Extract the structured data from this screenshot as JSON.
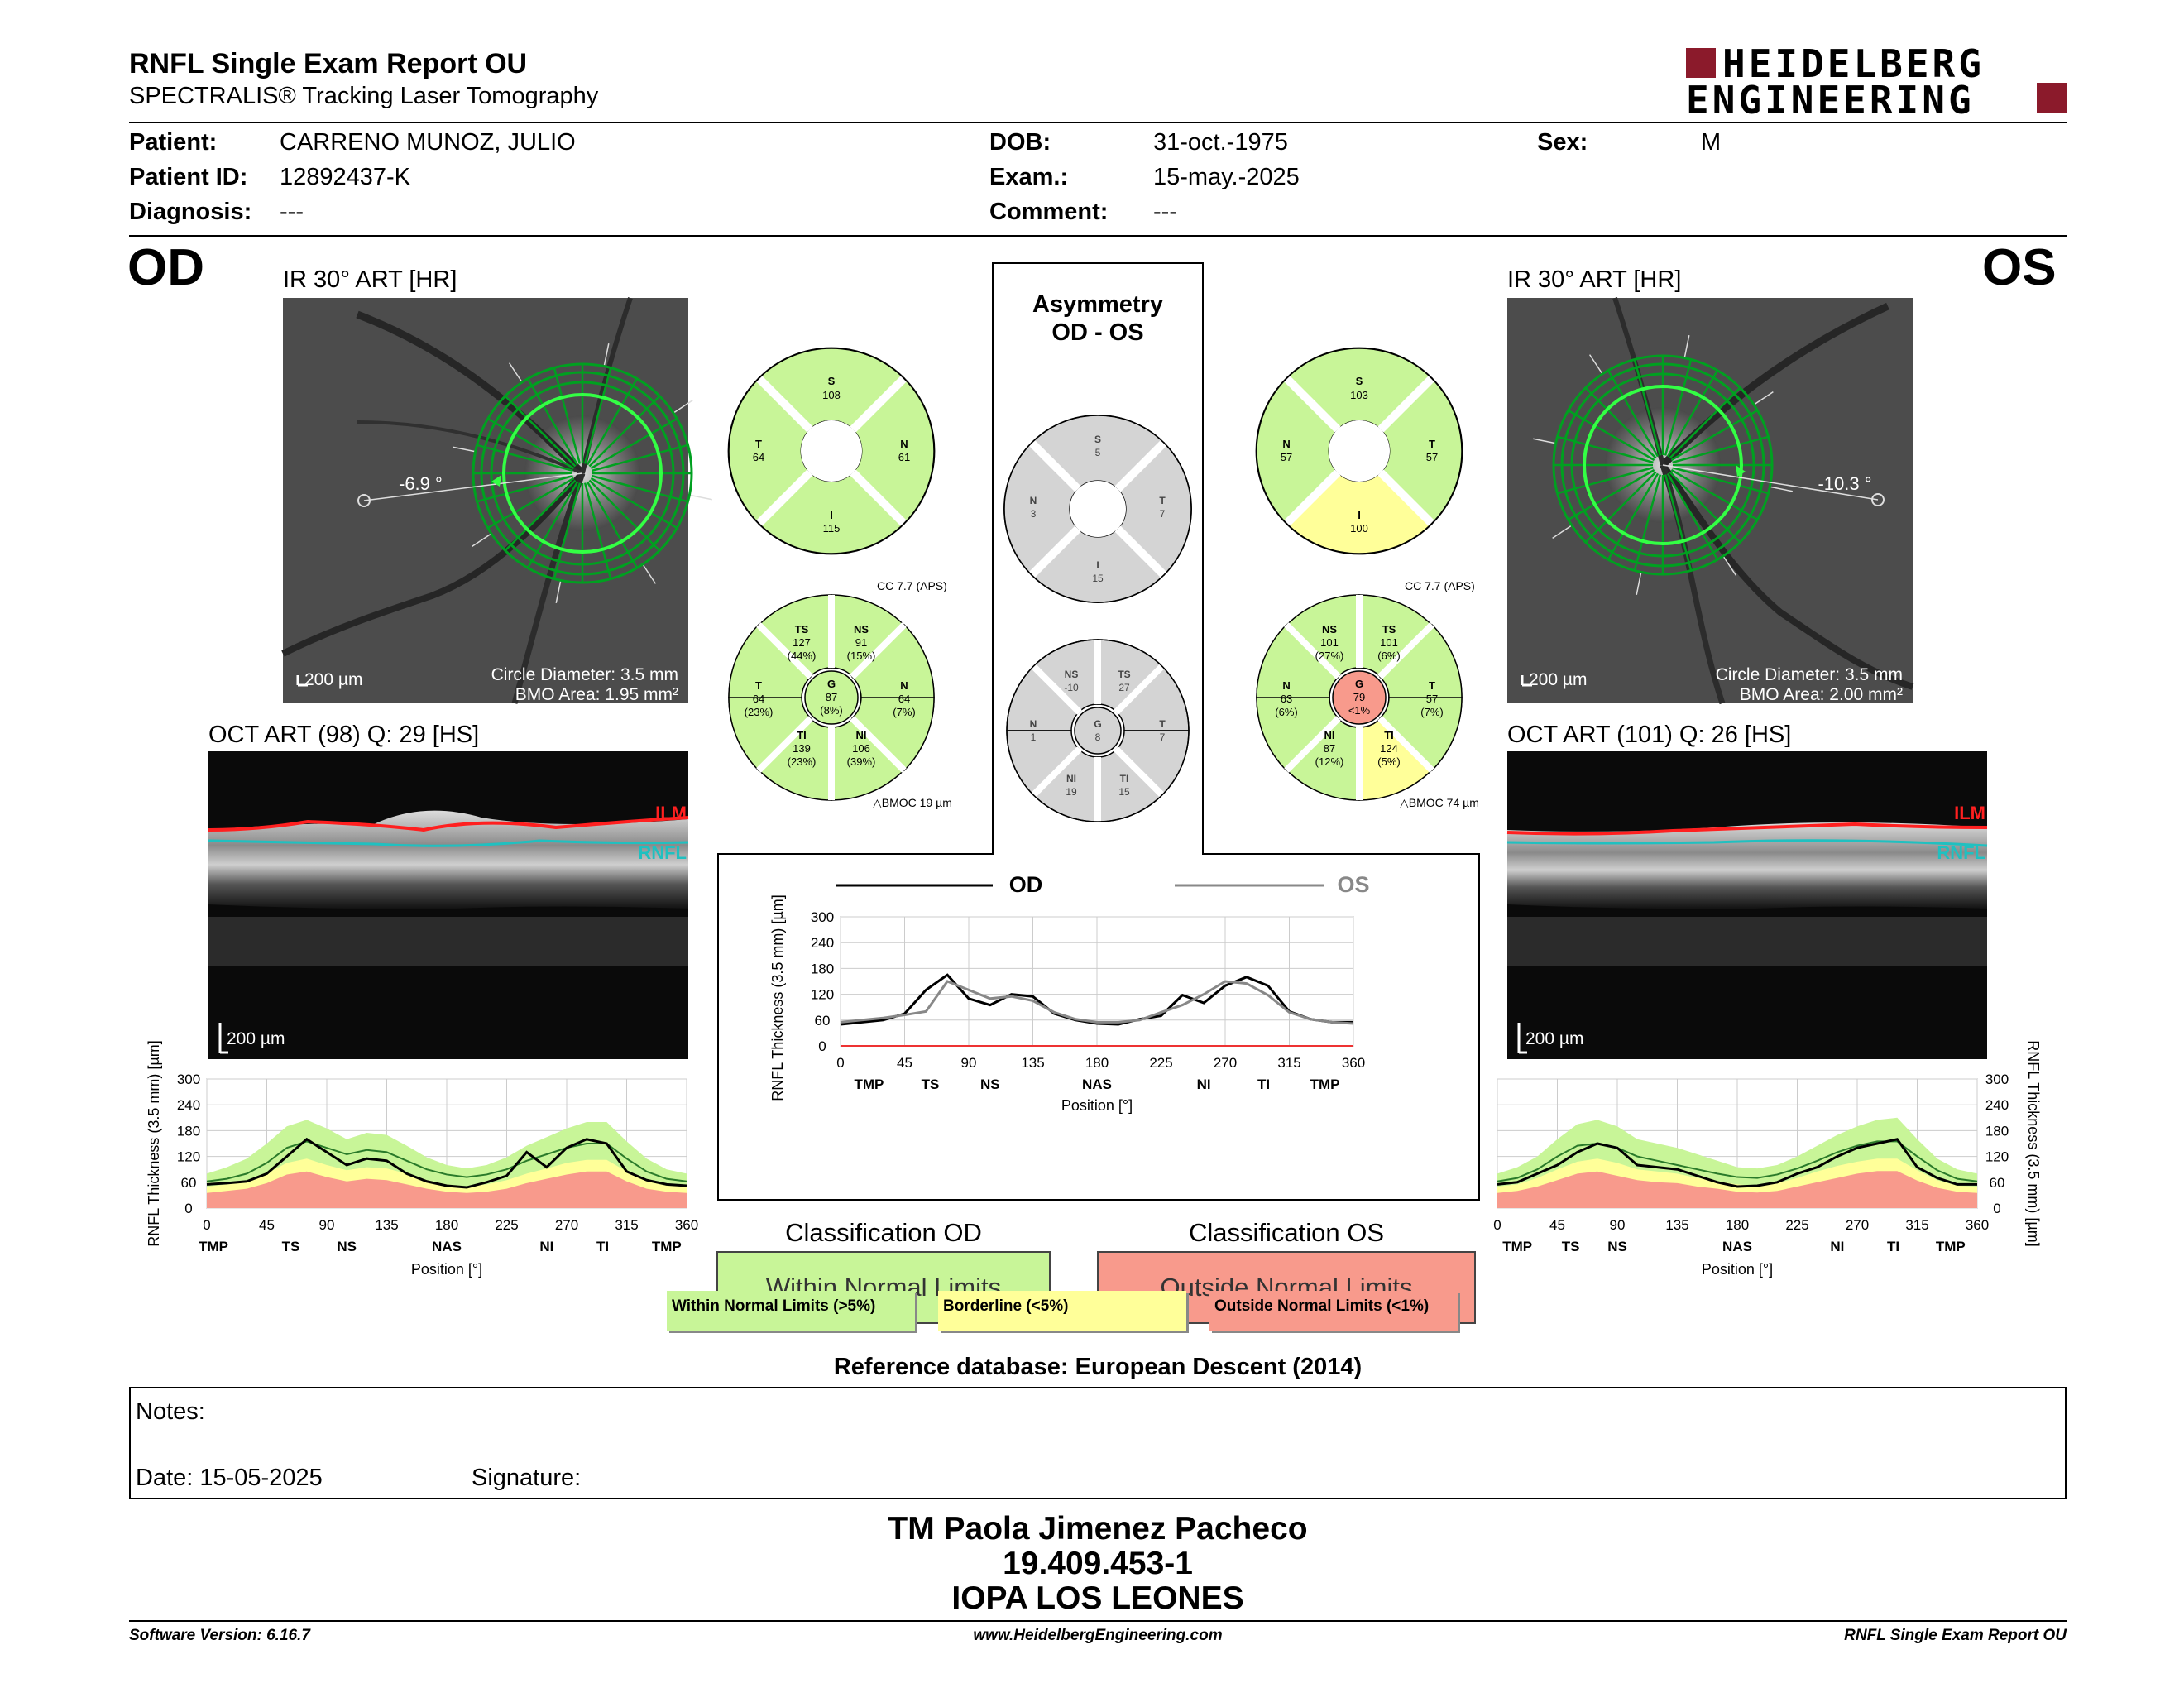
{
  "header": {
    "title": "RNFL Single Exam Report OU",
    "subtitle": "SPECTRALIS® Tracking Laser Tomography",
    "logo_line1": "HEIDELBERG",
    "logo_line2": "ENGINEERING"
  },
  "patient": {
    "patient_label": "Patient:",
    "patient_value": "CARRENO MUNOZ, JULIO",
    "id_label": "Patient ID:",
    "id_value": "12892437-K",
    "diagnosis_label": "Diagnosis:",
    "diagnosis_value": "---",
    "dob_label": "DOB:",
    "dob_value": "31-oct.-1975",
    "exam_label": "Exam.:",
    "exam_value": "15-may.-2025",
    "comment_label": "Comment:",
    "comment_value": "---",
    "sex_label": "Sex:",
    "sex_value": "M"
  },
  "od": {
    "eye": "OD",
    "ir_title": "IR 30° ART [HR]",
    "angle": "-6.9 °",
    "scale": "200 µm",
    "circle": "Circle Diameter: 3.5 mm",
    "bmo": "BMO Area: 1.95 mm²",
    "oct_title": "OCT ART (98) Q: 29 [HS]",
    "oct_scale": "200 µm",
    "ilm": "ILM",
    "rnfl": "RNFL",
    "classification_title": "Classification OD",
    "classification": "Within Normal Limits",
    "quad": {
      "s": "S",
      "s_v": "108",
      "t": "T",
      "t_v": "64",
      "n": "N",
      "n_v": "61",
      "i": "I",
      "i_v": "115"
    },
    "sect": {
      "cc": "CC 7.7 (APS)",
      "ts": "TS",
      "ts_v": "127",
      "ts_p": "(44%)",
      "ns": "NS",
      "ns_v": "91",
      "ns_p": "(15%)",
      "t": "T",
      "t_v": "64",
      "t_p": "(23%)",
      "g": "G",
      "g_v": "87",
      "g_p": "(8%)",
      "n": "N",
      "n_v": "64",
      "n_p": "(7%)",
      "ti": "TI",
      "ti_v": "139",
      "ti_p": "(23%)",
      "ni": "NI",
      "ni_v": "106",
      "ni_p": "(39%)",
      "bmoc": "BMOC 19 µm"
    }
  },
  "os": {
    "eye": "OS",
    "ir_title": "IR 30° ART [HR]",
    "angle": "-10.3 °",
    "scale": "200 µm",
    "circle": "Circle Diameter: 3.5 mm",
    "bmo": "BMO Area: 2.00 mm²",
    "oct_title": "OCT ART (101) Q: 26 [HS]",
    "oct_scale": "200 µm",
    "ilm": "ILM",
    "rnfl": "RNFL",
    "classification_title": "Classification OS",
    "classification": "Outside Normal Limits",
    "quad": {
      "s": "S",
      "s_v": "103",
      "t": "T",
      "t_v": "57",
      "n": "N",
      "n_v": "57",
      "i": "I",
      "i_v": "100"
    },
    "sect": {
      "cc": "CC 7.7 (APS)",
      "ns": "NS",
      "ns_v": "101",
      "ns_p": "(27%)",
      "ts": "TS",
      "ts_v": "101",
      "ts_p": "(6%)",
      "n": "N",
      "n_v": "63",
      "n_p": "(6%)",
      "g": "G",
      "g_v": "79",
      "g_p": "<1%",
      "t": "T",
      "t_v": "57",
      "t_p": "(7%)",
      "ni": "NI",
      "ni_v": "87",
      "ni_p": "(12%)",
      "ti": "TI",
      "ti_v": "124",
      "ti_p": "(5%)",
      "bmoc": "BMOC 74 µm"
    }
  },
  "asym": {
    "title1": "Asymmetry",
    "title2": "OD - OS",
    "quad": {
      "s": "S",
      "s_v": "5",
      "t": "T",
      "t_v": "7",
      "n": "N",
      "n_v": "3",
      "i": "I",
      "i_v": "15"
    },
    "sect": {
      "ns": "NS",
      "ns_v": "-10",
      "ts": "TS",
      "ts_v": "27",
      "n": "N",
      "n_v": "1",
      "g": "G",
      "g_v": "8",
      "t": "T",
      "t_v": "7",
      "ni": "NI",
      "ni_v": "19",
      "ti": "TI",
      "ti_v": "15"
    }
  },
  "chart_data": [
    {
      "type": "line",
      "id": "asymmetry-profile",
      "title": "",
      "series": [
        {
          "name": "OD",
          "color": "#000000",
          "x": [
            0,
            15,
            30,
            45,
            60,
            75,
            90,
            105,
            120,
            135,
            150,
            165,
            180,
            195,
            210,
            225,
            240,
            255,
            270,
            285,
            300,
            315,
            330,
            345,
            360
          ],
          "values": [
            50,
            55,
            60,
            75,
            130,
            165,
            110,
            95,
            120,
            115,
            75,
            60,
            52,
            50,
            62,
            70,
            118,
            100,
            140,
            160,
            140,
            80,
            62,
            55,
            55
          ]
        },
        {
          "name": "OS",
          "color": "#888888",
          "x": [
            0,
            15,
            30,
            45,
            60,
            75,
            90,
            105,
            120,
            135,
            150,
            165,
            180,
            195,
            210,
            225,
            240,
            255,
            270,
            285,
            300,
            315,
            330,
            345,
            360
          ],
          "values": [
            55,
            60,
            65,
            72,
            80,
            150,
            130,
            110,
            115,
            105,
            78,
            62,
            55,
            55,
            60,
            78,
            95,
            120,
            150,
            145,
            118,
            78,
            62,
            55,
            52
          ]
        }
      ],
      "xlabel": "Position [°]",
      "ylabel": "RNFL Thickness (3.5 mm) [µm]",
      "xlim": [
        0,
        360
      ],
      "ylim": [
        0,
        300
      ],
      "xticks": [
        0,
        45,
        90,
        135,
        180,
        225,
        270,
        315,
        360
      ],
      "yticks": [
        0,
        60,
        120,
        180,
        240,
        300
      ],
      "sector_labels": [
        {
          "x": 20,
          "text": "TMP"
        },
        {
          "x": 63,
          "text": "TS"
        },
        {
          "x": 105,
          "text": "NS"
        },
        {
          "x": 180,
          "text": "NAS"
        },
        {
          "x": 255,
          "text": "NI"
        },
        {
          "x": 297,
          "text": "TI"
        },
        {
          "x": 340,
          "text": "TMP"
        }
      ]
    },
    {
      "type": "area",
      "id": "od-profile",
      "xlabel": "Position [°]",
      "ylabel": "RNFL Thickness (3.5 mm) [µm]",
      "xlim": [
        0,
        360
      ],
      "ylim": [
        0,
        300
      ],
      "xticks": [
        0,
        45,
        90,
        135,
        180,
        225,
        270,
        315,
        360
      ],
      "yticks": [
        0,
        60,
        120,
        180,
        240,
        300
      ],
      "sector_labels": [
        {
          "x": 5,
          "text": "TMP"
        },
        {
          "x": 63,
          "text": "TS"
        },
        {
          "x": 105,
          "text": "NS"
        },
        {
          "x": 180,
          "text": "NAS"
        },
        {
          "x": 255,
          "text": "NI"
        },
        {
          "x": 297,
          "text": "TI"
        },
        {
          "x": 345,
          "text": "TMP"
        }
      ],
      "x": [
        0,
        15,
        30,
        45,
        60,
        75,
        90,
        105,
        120,
        135,
        150,
        165,
        180,
        195,
        210,
        225,
        240,
        255,
        270,
        285,
        300,
        315,
        330,
        345,
        360
      ],
      "measured": [
        55,
        58,
        62,
        80,
        120,
        160,
        130,
        100,
        115,
        110,
        80,
        62,
        52,
        48,
        60,
        75,
        130,
        95,
        140,
        160,
        150,
        85,
        65,
        55,
        52
      ],
      "mean": [
        62,
        68,
        80,
        105,
        140,
        155,
        140,
        125,
        135,
        130,
        110,
        90,
        78,
        72,
        78,
        90,
        110,
        125,
        140,
        150,
        150,
        115,
        85,
        68,
        62
      ],
      "band_green_top": [
        80,
        95,
        115,
        150,
        190,
        205,
        185,
        160,
        175,
        170,
        145,
        118,
        100,
        92,
        100,
        118,
        145,
        165,
        185,
        200,
        200,
        155,
        115,
        90,
        80
      ],
      "band_yellow_top": [
        50,
        55,
        62,
        80,
        105,
        115,
        100,
        88,
        95,
        92,
        80,
        65,
        55,
        50,
        55,
        65,
        80,
        92,
        105,
        112,
        112,
        85,
        62,
        52,
        50
      ],
      "band_red_top": [
        35,
        40,
        45,
        58,
        78,
        85,
        72,
        62,
        68,
        65,
        55,
        45,
        38,
        35,
        38,
        45,
        58,
        68,
        78,
        85,
        85,
        62,
        45,
        38,
        35
      ]
    },
    {
      "type": "area",
      "id": "os-profile",
      "xlabel": "Position [°]",
      "ylabel": "RNFL Thickness (3.5 mm) [µm]",
      "xlim": [
        0,
        360
      ],
      "ylim": [
        0,
        300
      ],
      "xticks": [
        0,
        45,
        90,
        135,
        180,
        225,
        270,
        315,
        360
      ],
      "yticks": [
        0,
        60,
        120,
        180,
        240,
        300
      ],
      "sector_labels": [
        {
          "x": 15,
          "text": "TMP"
        },
        {
          "x": 55,
          "text": "TS"
        },
        {
          "x": 90,
          "text": "NS"
        },
        {
          "x": 180,
          "text": "NAS"
        },
        {
          "x": 255,
          "text": "NI"
        },
        {
          "x": 297,
          "text": "TI"
        },
        {
          "x": 340,
          "text": "TMP"
        }
      ],
      "x": [
        0,
        15,
        30,
        45,
        60,
        75,
        90,
        105,
        120,
        135,
        150,
        165,
        180,
        195,
        210,
        225,
        240,
        255,
        270,
        285,
        300,
        315,
        330,
        345,
        360
      ],
      "measured": [
        55,
        60,
        80,
        100,
        130,
        150,
        140,
        100,
        95,
        90,
        75,
        60,
        50,
        52,
        60,
        80,
        95,
        120,
        140,
        150,
        160,
        95,
        70,
        55,
        55
      ],
      "mean": [
        62,
        70,
        90,
        120,
        145,
        150,
        140,
        120,
        110,
        100,
        90,
        80,
        72,
        70,
        78,
        92,
        110,
        130,
        145,
        155,
        155,
        120,
        88,
        68,
        62
      ],
      "band_green_top": [
        80,
        95,
        120,
        160,
        195,
        205,
        190,
        160,
        150,
        140,
        125,
        110,
        95,
        92,
        100,
        120,
        145,
        170,
        190,
        205,
        210,
        160,
        115,
        90,
        80
      ],
      "band_yellow_top": [
        50,
        55,
        70,
        90,
        108,
        115,
        105,
        90,
        85,
        80,
        70,
        62,
        55,
        52,
        58,
        70,
        85,
        98,
        108,
        115,
        115,
        88,
        65,
        52,
        50
      ],
      "band_red_top": [
        35,
        40,
        50,
        65,
        80,
        85,
        75,
        65,
        60,
        58,
        50,
        45,
        38,
        36,
        40,
        50,
        60,
        70,
        80,
        86,
        86,
        64,
        47,
        38,
        35
      ]
    }
  ],
  "legend": {
    "wnl": "Within Normal Limits (>5%)",
    "bl": "Borderline (<5%)",
    "onl": "Outside Normal Limits (<1%)"
  },
  "colors": {
    "normal": "#c8f598",
    "borderline": "#ffff99",
    "outside": "#f89a8c",
    "gray": "#d4d4d4",
    "brand": "#8b1a2b"
  },
  "reference": "Reference database: European Descent (2014)",
  "notes": {
    "label": "Notes:",
    "date_label": "Date:",
    "date_value": "15-05-2025",
    "signature_label": "Signature:"
  },
  "signer": {
    "name": "TM Paola Jimenez Pacheco",
    "rut": "19.409.453-1",
    "institution": "IOPA LOS LEONES"
  },
  "footer": {
    "software": "Software Version: 6.16.7",
    "website": "www.HeidelbergEngineering.com",
    "report": "RNFL Single Exam Report OU"
  }
}
